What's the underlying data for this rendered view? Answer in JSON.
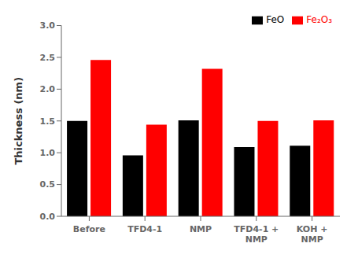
{
  "chart_data": {
    "type": "bar",
    "categories": [
      "Before",
      "TFD4-1",
      "NMP",
      "TFD4-1 +\nNMP",
      "KOH +\nNMP"
    ],
    "series": [
      {
        "name": "FeO",
        "color": "#000000",
        "values": [
          1.5,
          0.96,
          1.51,
          1.09,
          1.11
        ]
      },
      {
        "name": "Fe₂O₃",
        "color": "#ff0000",
        "values": [
          2.46,
          1.44,
          2.32,
          1.5,
          1.51
        ]
      }
    ],
    "ylabel": "Thickness (nm)",
    "ylim": [
      0,
      3.0
    ],
    "yticks": [
      {
        "value": 0,
        "label": "0.0"
      },
      0.5,
      {
        "value": 1,
        "label": "1.0"
      },
      1.5,
      {
        "value": 2,
        "label": "2.0"
      },
      2.5,
      {
        "value": 3,
        "label": "3.0"
      }
    ],
    "legend": "upper right",
    "grid": false
  }
}
